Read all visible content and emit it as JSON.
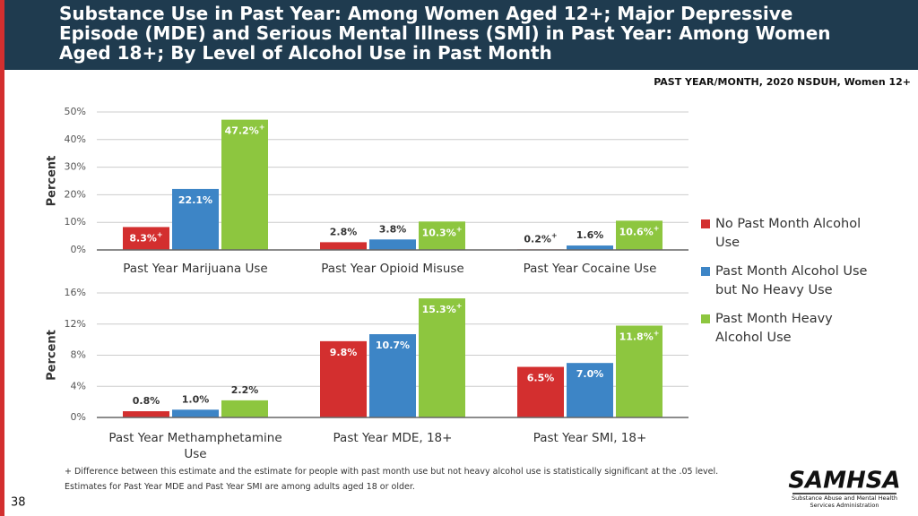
{
  "header": {
    "title": "Substance Use in Past Year: Among Women Aged 12+; Major Depressive Episode (MDE) and Serious Mental Illness (SMI) in Past Year: Among Women Aged 18+; By Level of Alcohol Use in Past Month",
    "subtitle": "PAST YEAR/MONTH, 2020 NSDUH, Women 12+"
  },
  "chart_data": [
    {
      "type": "bar",
      "y_label": "Percent",
      "categories": [
        "Past Year Marijuana Use",
        "Past Year Opioid Misuse",
        "Past Year Cocaine Use"
      ],
      "series": [
        {
          "name": "No Past Month Alcohol Use",
          "color": "#d32f2f",
          "values": [
            8.3,
            2.8,
            0.2
          ],
          "value_labels": [
            "8.3%+",
            "2.8%",
            "0.2%+"
          ]
        },
        {
          "name": "Past Month Alcohol Use but No Heavy Use",
          "color": "#3d85c6",
          "values": [
            22.1,
            3.8,
            1.6
          ],
          "value_labels": [
            "22.1%",
            "3.8%",
            "1.6%"
          ]
        },
        {
          "name": "Past Month Heavy Alcohol Use",
          "color": "#8dc63f",
          "values": [
            47.2,
            10.3,
            10.6
          ],
          "value_labels": [
            "47.2%+",
            "10.3%+",
            "10.6%+"
          ]
        }
      ],
      "ylim": [
        0,
        50
      ],
      "yticks": [
        {
          "value": 0,
          "label": "0%"
        },
        {
          "value": 10,
          "label": "10%"
        },
        {
          "value": 20,
          "label": "20%"
        },
        {
          "value": 30,
          "label": "30%"
        },
        {
          "value": 40,
          "label": "40%"
        },
        {
          "value": 50,
          "label": "50%"
        }
      ],
      "grid": true
    },
    {
      "type": "bar",
      "y_label": "Percent",
      "categories": [
        "Past Year Methamphetamine Use",
        "Past Year MDE, 18+",
        "Past Year SMI, 18+"
      ],
      "series": [
        {
          "color": "#d32f2f",
          "values": [
            0.8,
            9.8,
            6.5
          ],
          "value_labels": [
            "0.8%",
            "9.8%",
            "6.5%"
          ]
        },
        {
          "color": "#3d85c6",
          "values": [
            1.0,
            10.7,
            7.0
          ],
          "value_labels": [
            "1.0%",
            "10.7%",
            "7.0%"
          ]
        },
        {
          "color": "#8dc63f",
          "values": [
            2.2,
            15.3,
            11.8
          ],
          "value_labels": [
            "2.2%",
            "15.3%+",
            "11.8%+"
          ]
        }
      ],
      "ylim": [
        0,
        16
      ],
      "yticks": [
        {
          "value": 0,
          "label": "0%"
        },
        {
          "value": 4,
          "label": "4%"
        },
        {
          "value": 8,
          "label": "8%"
        },
        {
          "value": 12,
          "label": "12%"
        },
        {
          "value": 16,
          "label": "16%"
        }
      ],
      "grid": true
    }
  ],
  "footnotes": [
    "+ Difference between this estimate and the estimate for people with past month use but not heavy alcohol use is statistically significant at the .05 level.",
    "Estimates for Past Year MDE and Past Year SMI are among adults aged 18 or older."
  ],
  "page_number": "38",
  "logo": {
    "name": "SAMHSA",
    "tagline": [
      "Substance Abuse and Mental Health",
      "Services Administration"
    ]
  }
}
